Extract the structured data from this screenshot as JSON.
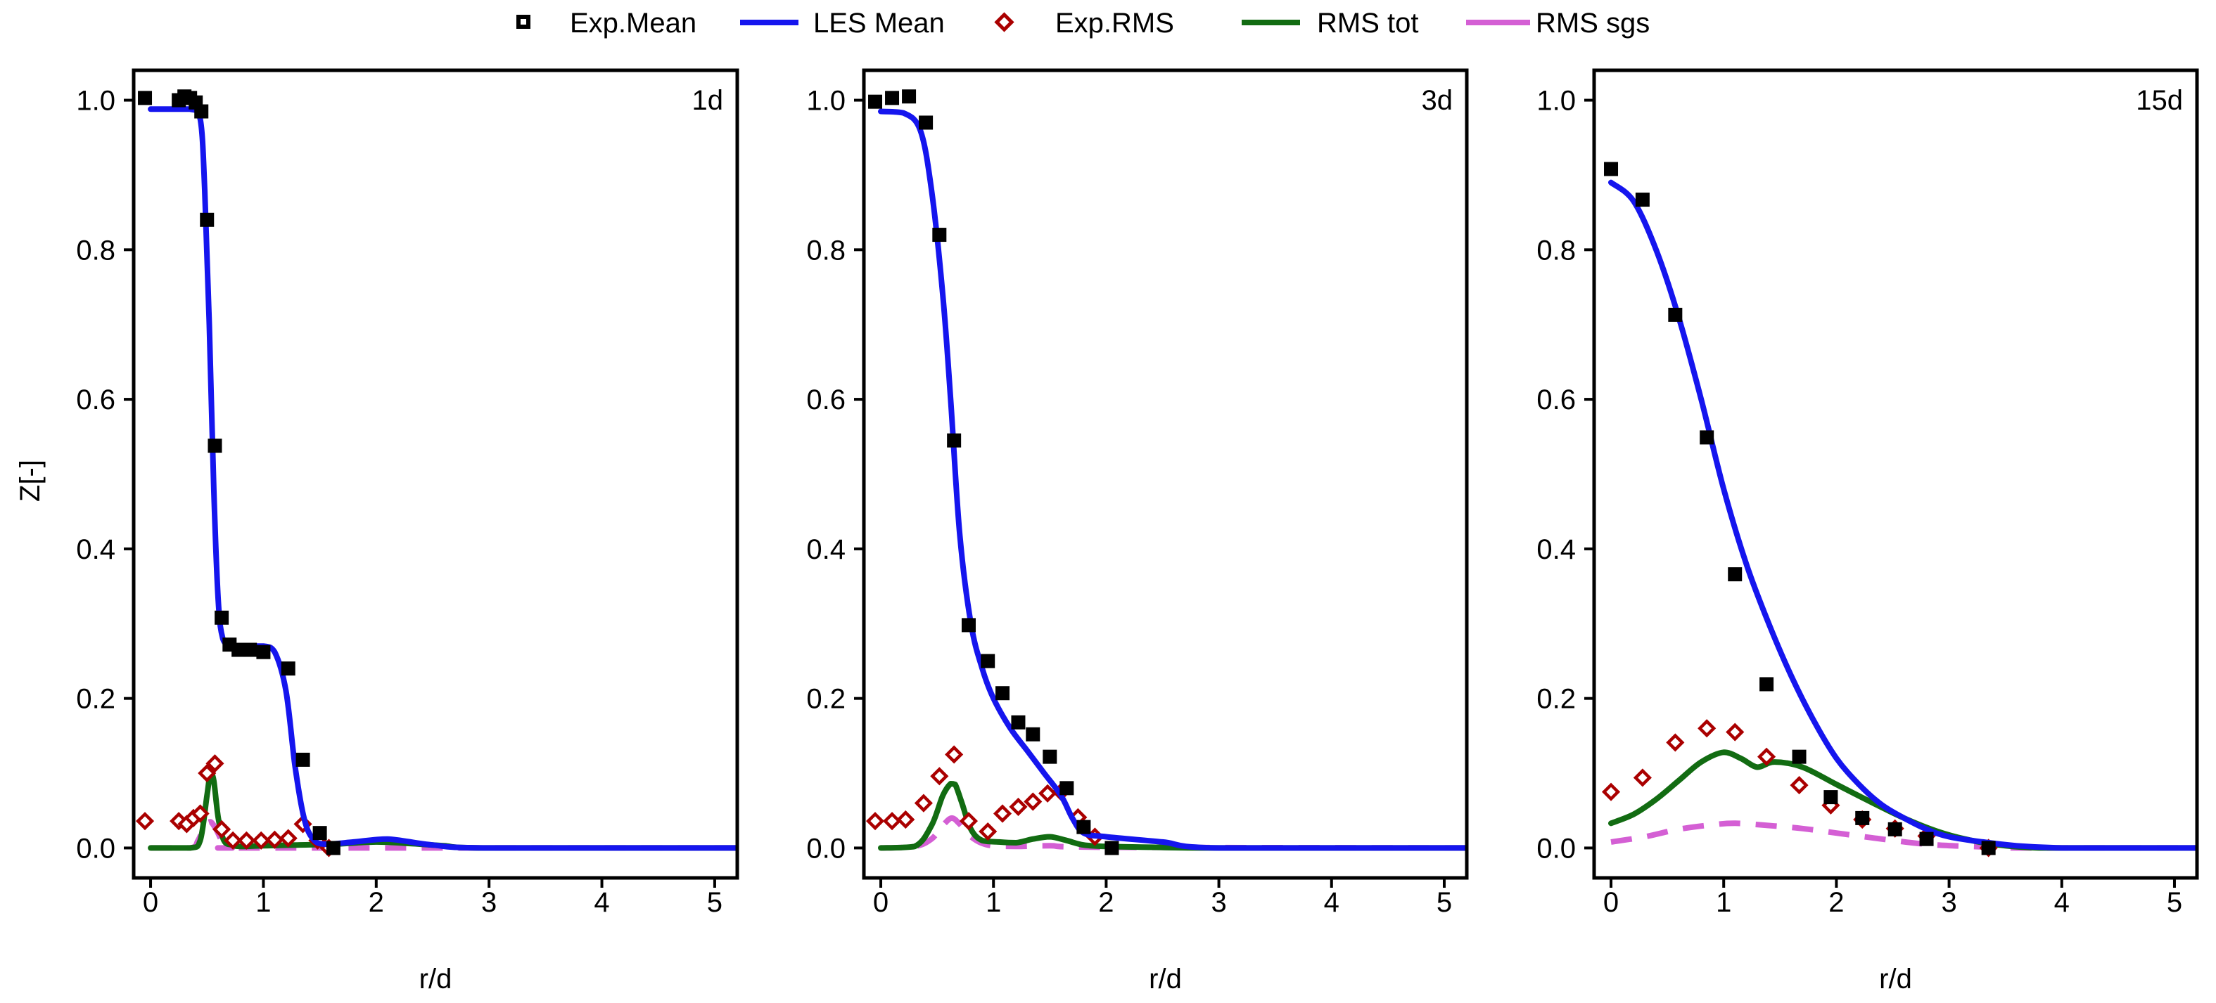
{
  "chart_data": {
    "type": "line",
    "figure_title": "",
    "ylabel": "Z[-]",
    "xlabel": "r/d",
    "xlim": [
      -0.15,
      5.2
    ],
    "ylim": [
      -0.04,
      1.04
    ],
    "xticks": [
      0,
      1,
      2,
      3,
      4,
      5
    ],
    "yticks": [
      0.0,
      0.2,
      0.4,
      0.6,
      0.8,
      1.0
    ],
    "ytick_labels": [
      "0.0",
      "0.2",
      "0.4",
      "0.6",
      "0.8",
      "1.0"
    ],
    "legend": {
      "placement": "top-center",
      "entries": [
        {
          "name": "Exp.Mean",
          "marker": "square",
          "color": "#000000"
        },
        {
          "name": "LES Mean",
          "marker": "line",
          "color": "#1515ee"
        },
        {
          "name": "Exp.RMS",
          "marker": "diamond",
          "color": "#aa0000"
        },
        {
          "name": "RMS tot",
          "marker": "line",
          "color": "#126c12"
        },
        {
          "name": "RMS sgs",
          "marker": "dashed",
          "color": "#d45fd4"
        }
      ]
    },
    "panels": [
      {
        "label": "1d",
        "exp_mean": {
          "x": [
            -0.05,
            0.25,
            0.3,
            0.35,
            0.4,
            0.45,
            0.5,
            0.57,
            0.63,
            0.7,
            0.78,
            0.88,
            1.0,
            1.22,
            1.35,
            1.5,
            1.62
          ],
          "y": [
            1.003,
            1.0,
            1.005,
            1.003,
            0.997,
            0.985,
            0.84,
            0.538,
            0.308,
            0.272,
            0.265,
            0.265,
            0.262,
            0.24,
            0.118,
            0.02,
            0.0
          ]
        },
        "les_mean": {
          "x": [
            0.0,
            0.35,
            0.44,
            0.48,
            0.52,
            0.56,
            0.6,
            0.64,
            0.7,
            0.8,
            1.0,
            1.1,
            1.2,
            1.28,
            1.36,
            1.44,
            1.55,
            1.8,
            2.1,
            2.5,
            3.0,
            5.2
          ],
          "y": [
            0.988,
            0.988,
            0.975,
            0.88,
            0.7,
            0.48,
            0.33,
            0.28,
            0.272,
            0.27,
            0.27,
            0.262,
            0.21,
            0.11,
            0.04,
            0.012,
            0.005,
            0.008,
            0.012,
            0.004,
            0.0,
            0.0
          ]
        },
        "exp_rms": {
          "x": [
            -0.05,
            0.25,
            0.32,
            0.38,
            0.44,
            0.5,
            0.57,
            0.63,
            0.73,
            0.85,
            0.98,
            1.1,
            1.22,
            1.35,
            1.48,
            1.58
          ],
          "y": [
            0.036,
            0.036,
            0.032,
            0.04,
            0.046,
            0.1,
            0.113,
            0.025,
            0.01,
            0.01,
            0.01,
            0.011,
            0.013,
            0.032,
            0.01,
            0.0
          ]
        },
        "rms_tot": {
          "x": [
            0.0,
            0.35,
            0.44,
            0.5,
            0.53,
            0.56,
            0.6,
            0.65,
            0.72,
            0.8,
            1.0,
            1.3,
            1.6,
            2.0,
            2.3,
            2.6,
            3.0,
            5.2
          ],
          "y": [
            0.0,
            0.0,
            0.01,
            0.07,
            0.1,
            0.09,
            0.04,
            0.01,
            0.004,
            0.002,
            0.003,
            0.004,
            0.005,
            0.008,
            0.006,
            0.003,
            0.0,
            0.0
          ]
        },
        "rms_sgs": {
          "x": [
            0.0,
            0.35,
            0.42,
            0.48,
            0.53,
            0.58,
            0.64,
            0.72,
            1.0,
            5.2
          ],
          "y": [
            0.0,
            0.0,
            0.01,
            0.03,
            0.035,
            0.025,
            0.008,
            0.0,
            0.0,
            0.0
          ]
        }
      },
      {
        "label": "3d",
        "exp_mean": {
          "x": [
            -0.05,
            0.1,
            0.25,
            0.4,
            0.52,
            0.65,
            0.78,
            0.95,
            1.08,
            1.22,
            1.35,
            1.5,
            1.65,
            1.8,
            2.05
          ],
          "y": [
            0.998,
            1.003,
            1.005,
            0.97,
            0.82,
            0.545,
            0.298,
            0.25,
            0.207,
            0.168,
            0.152,
            0.122,
            0.08,
            0.028,
            0.0
          ]
        },
        "les_mean": {
          "x": [
            0.0,
            0.2,
            0.35,
            0.45,
            0.55,
            0.62,
            0.7,
            0.8,
            0.9,
            1.0,
            1.15,
            1.3,
            1.45,
            1.6,
            1.7,
            1.8,
            2.0,
            2.5,
            3.0,
            5.2
          ],
          "y": [
            0.985,
            0.983,
            0.96,
            0.88,
            0.74,
            0.6,
            0.42,
            0.3,
            0.24,
            0.2,
            0.16,
            0.13,
            0.1,
            0.07,
            0.04,
            0.02,
            0.015,
            0.008,
            0.0,
            0.0
          ]
        },
        "exp_rms": {
          "x": [
            -0.05,
            0.1,
            0.22,
            0.38,
            0.52,
            0.65,
            0.78,
            0.95,
            1.08,
            1.22,
            1.35,
            1.48,
            1.6,
            1.75,
            1.9
          ],
          "y": [
            0.036,
            0.036,
            0.038,
            0.06,
            0.096,
            0.125,
            0.036,
            0.022,
            0.046,
            0.055,
            0.062,
            0.073,
            0.075,
            0.041,
            0.015
          ]
        },
        "rms_tot": {
          "x": [
            0.0,
            0.3,
            0.45,
            0.55,
            0.62,
            0.66,
            0.72,
            0.8,
            0.9,
            1.05,
            1.2,
            1.35,
            1.5,
            1.65,
            1.8,
            2.0,
            2.4,
            3.0,
            5.2
          ],
          "y": [
            0.0,
            0.002,
            0.03,
            0.07,
            0.086,
            0.085,
            0.06,
            0.025,
            0.01,
            0.008,
            0.007,
            0.012,
            0.015,
            0.01,
            0.004,
            0.002,
            0.001,
            0.0,
            0.0
          ]
        },
        "rms_sgs": {
          "x": [
            0.0,
            0.3,
            0.45,
            0.55,
            0.63,
            0.7,
            0.8,
            0.95,
            1.2,
            1.5,
            2.0,
            5.2
          ],
          "y": [
            0.0,
            0.002,
            0.012,
            0.03,
            0.04,
            0.032,
            0.015,
            0.004,
            0.002,
            0.003,
            0.001,
            0.0
          ]
        }
      },
      {
        "label": "15d",
        "exp_mean": {
          "x": [
            0.0,
            0.28,
            0.57,
            0.85,
            1.1,
            1.38,
            1.67,
            1.95,
            2.23,
            2.52,
            2.8,
            3.35
          ],
          "y": [
            0.908,
            0.867,
            0.713,
            0.549,
            0.366,
            0.219,
            0.122,
            0.068,
            0.04,
            0.025,
            0.012,
            0.0
          ]
        },
        "les_mean": {
          "x": [
            0.0,
            0.2,
            0.4,
            0.6,
            0.8,
            1.0,
            1.2,
            1.4,
            1.6,
            1.8,
            2.0,
            2.2,
            2.4,
            2.6,
            2.8,
            3.0,
            3.3,
            3.6,
            4.0,
            4.5,
            5.2
          ],
          "y": [
            0.89,
            0.865,
            0.8,
            0.71,
            0.6,
            0.48,
            0.38,
            0.3,
            0.23,
            0.17,
            0.12,
            0.085,
            0.058,
            0.04,
            0.025,
            0.015,
            0.008,
            0.003,
            0.0,
            0.0,
            0.0
          ]
        },
        "exp_rms": {
          "x": [
            0.0,
            0.28,
            0.57,
            0.85,
            1.1,
            1.38,
            1.67,
            1.95,
            2.23,
            2.52,
            2.8,
            3.35
          ],
          "y": [
            0.075,
            0.094,
            0.141,
            0.16,
            0.155,
            0.122,
            0.084,
            0.057,
            0.038,
            0.026,
            0.016,
            0.0
          ]
        },
        "rms_tot": {
          "x": [
            0.0,
            0.2,
            0.4,
            0.6,
            0.8,
            1.0,
            1.15,
            1.3,
            1.45,
            1.7,
            2.0,
            2.3,
            2.6,
            2.9,
            3.2,
            3.5,
            3.8,
            4.2,
            5.2
          ],
          "y": [
            0.033,
            0.045,
            0.065,
            0.09,
            0.115,
            0.128,
            0.12,
            0.108,
            0.115,
            0.108,
            0.085,
            0.062,
            0.04,
            0.022,
            0.01,
            0.003,
            0.0,
            0.0,
            0.0
          ]
        },
        "rms_sgs": {
          "x": [
            0.0,
            0.3,
            0.6,
            0.9,
            1.1,
            1.4,
            1.7,
            2.0,
            2.4,
            2.8,
            3.2,
            3.6,
            4.0,
            5.2
          ],
          "y": [
            0.008,
            0.015,
            0.025,
            0.031,
            0.033,
            0.03,
            0.026,
            0.02,
            0.012,
            0.005,
            0.002,
            0.0,
            0.0,
            0.0
          ]
        }
      }
    ]
  }
}
